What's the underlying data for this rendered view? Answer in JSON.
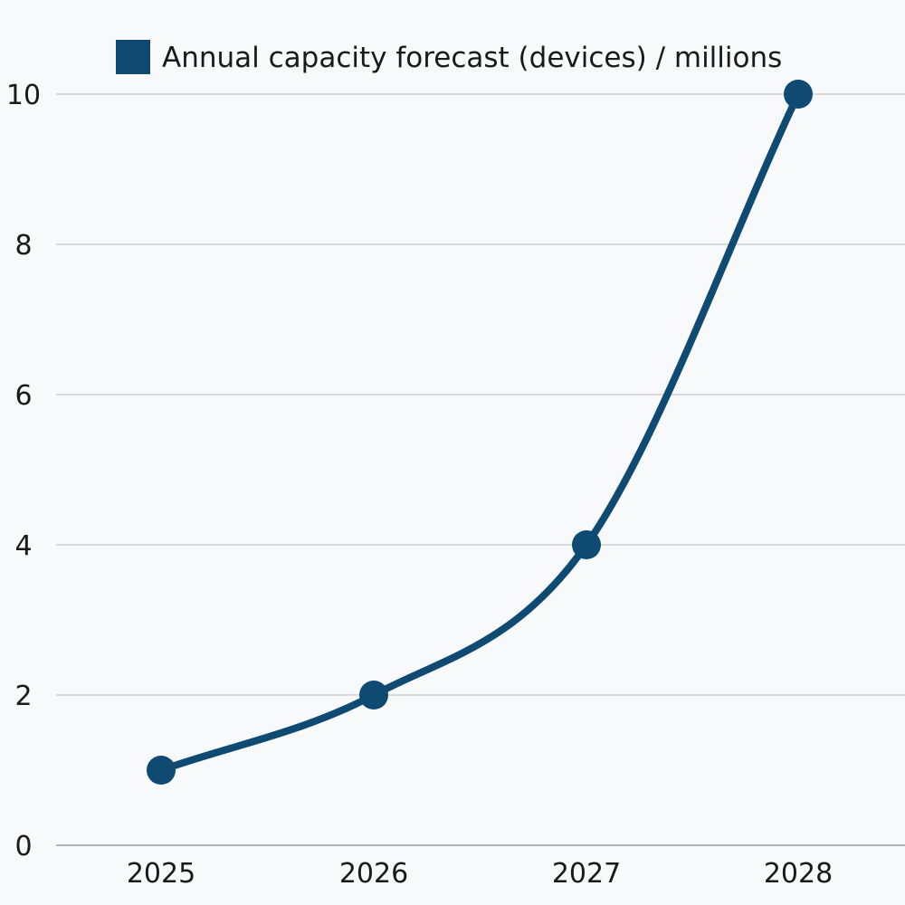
{
  "chart_data": {
    "type": "line",
    "title": "",
    "xlabel": "",
    "ylabel": "",
    "categories": [
      "2025",
      "2026",
      "2027",
      "2028"
    ],
    "series": [
      {
        "name": "Annual capacity forecast (devices) / millions",
        "values": [
          1,
          2,
          4,
          10
        ],
        "color": "#0e4a72"
      }
    ],
    "ylim": [
      0,
      10
    ],
    "yticks": [
      "0",
      "2",
      "4",
      "6",
      "8",
      "10"
    ],
    "grid": true,
    "legend_position": "top",
    "curve": "smooth"
  }
}
